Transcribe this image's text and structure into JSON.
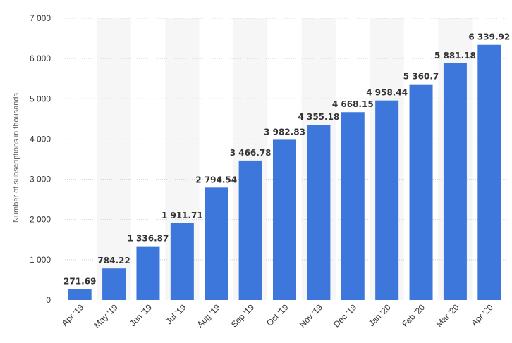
{
  "chart_data": {
    "type": "bar",
    "categories": [
      "Apr '19",
      "May '19",
      "Jun '19",
      "Jul '19",
      "Aug '19",
      "Sep '19",
      "Oct '19",
      "Nov '19",
      "Dec '19",
      "Jan '20",
      "Feb '20",
      "Mar '20",
      "Apr '20"
    ],
    "values": [
      271.69,
      784.22,
      1336.87,
      1911.71,
      2794.54,
      3466.78,
      3982.83,
      4355.18,
      4668.15,
      4958.44,
      5360.7,
      5881.18,
      6339.92
    ],
    "data_labels": [
      "271.69",
      "784.22",
      "1 336.87",
      "1 911.71",
      "2 794.54",
      "3 466.78",
      "3 982.83",
      "4 355.18",
      "4 668.15",
      "4 958.44",
      "5 360.7",
      "5 881.18",
      "6 339.92"
    ],
    "ylabel": "Number of subscriptions in thousands",
    "xlabel": "",
    "title": "",
    "ylim": [
      0,
      7000
    ],
    "yticks": [
      0,
      1000,
      2000,
      3000,
      4000,
      5000,
      6000,
      7000
    ],
    "ytick_labels": [
      "0",
      "1 000",
      "2 000",
      "3 000",
      "4 000",
      "5 000",
      "6 000",
      "7 000"
    ],
    "grid": true,
    "legend": "none",
    "bar_color": "#3e77dc",
    "band_color": "#f6f6f6"
  }
}
